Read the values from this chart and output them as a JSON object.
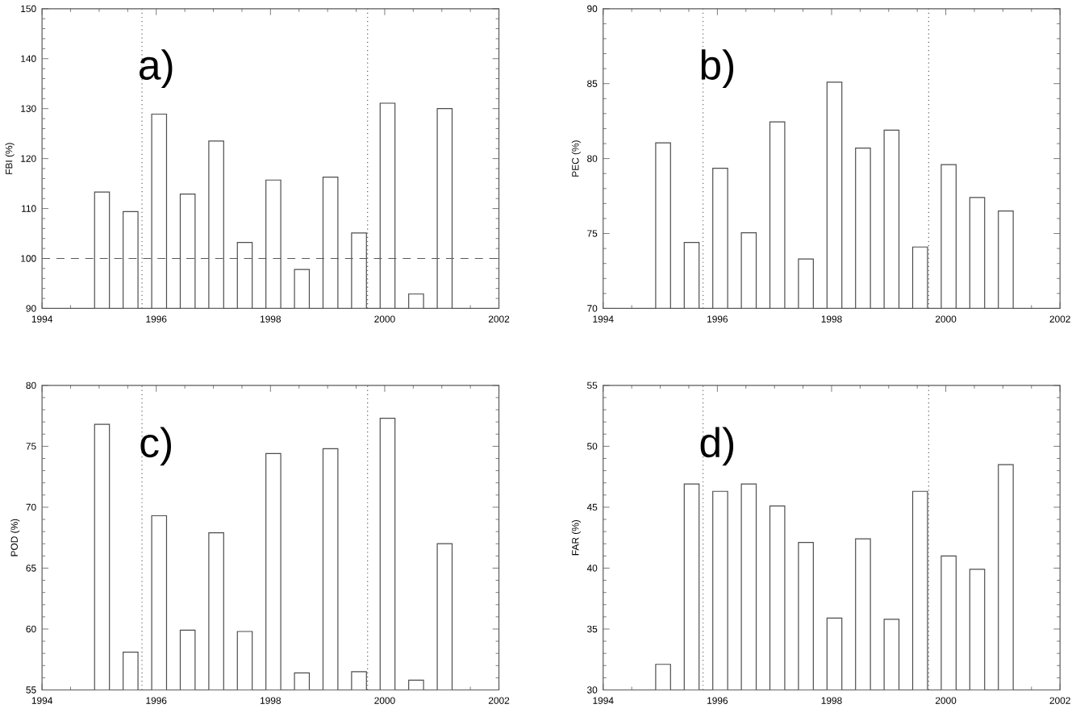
{
  "chart_data": [
    {
      "type": "bar",
      "ylabel": "FBI (%)",
      "annotations": [
        "a)"
      ],
      "x": [
        1995.05,
        1995.55,
        1996.05,
        1996.55,
        1997.05,
        1997.55,
        1998.05,
        1998.55,
        1999.05,
        1999.55,
        2000.05,
        2000.55,
        2001.05
      ],
      "values": [
        113.3,
        109.4,
        128.9,
        112.9,
        123.5,
        103.2,
        115.7,
        97.8,
        116.3,
        105.1,
        131.1,
        92.9,
        130.0
      ],
      "xlim": [
        1994,
        2002
      ],
      "xticks": [
        1994,
        1996,
        1998,
        2000,
        2002
      ],
      "ylim": [
        90,
        150
      ],
      "yticks": [
        90,
        100,
        110,
        120,
        130,
        140,
        150
      ],
      "ref_lines": [
        {
          "axis": "x",
          "value": 1995.75,
          "line_style": "dotted"
        },
        {
          "axis": "x",
          "value": 1999.7,
          "line_style": "dotted"
        },
        {
          "axis": "y",
          "value": 100,
          "line_style": "dashed"
        }
      ]
    },
    {
      "type": "bar",
      "ylabel": "PEC (%)",
      "annotations": [
        "b)"
      ],
      "x": [
        1995.05,
        1995.55,
        1996.05,
        1996.55,
        1997.05,
        1997.55,
        1998.05,
        1998.55,
        1999.05,
        1999.55,
        2000.05,
        2000.55,
        2001.05
      ],
      "values": [
        81.05,
        74.4,
        79.35,
        75.05,
        82.45,
        73.3,
        85.1,
        80.7,
        81.9,
        74.1,
        79.6,
        77.4,
        76.5
      ],
      "xlim": [
        1994,
        2002
      ],
      "xticks": [
        1994,
        1996,
        1998,
        2000,
        2002
      ],
      "ylim": [
        70,
        90
      ],
      "yticks": [
        70,
        75,
        80,
        85,
        90
      ],
      "ref_lines": [
        {
          "axis": "x",
          "value": 1995.75,
          "line_style": "dotted"
        },
        {
          "axis": "x",
          "value": 1999.7,
          "line_style": "dotted"
        }
      ]
    },
    {
      "type": "bar",
      "ylabel": "POD (%)",
      "annotations": [
        "c)"
      ],
      "x": [
        1995.05,
        1995.55,
        1996.05,
        1996.55,
        1997.05,
        1997.55,
        1998.05,
        1998.55,
        1999.05,
        1999.55,
        2000.05,
        2000.55,
        2001.05
      ],
      "values": [
        76.8,
        58.1,
        69.3,
        59.9,
        67.9,
        59.8,
        74.4,
        56.4,
        74.8,
        56.5,
        77.3,
        55.8,
        67.0
      ],
      "xlim": [
        1994,
        2002
      ],
      "xticks": [
        1994,
        1996,
        1998,
        2000,
        2002
      ],
      "ylim": [
        55,
        80
      ],
      "yticks": [
        55,
        60,
        65,
        70,
        75,
        80
      ],
      "ref_lines": [
        {
          "axis": "x",
          "value": 1995.75,
          "line_style": "dotted"
        },
        {
          "axis": "x",
          "value": 1999.7,
          "line_style": "dotted"
        }
      ]
    },
    {
      "type": "bar",
      "ylabel": "FAR (%)",
      "annotations": [
        "d)"
      ],
      "x": [
        1995.05,
        1995.55,
        1996.05,
        1996.55,
        1997.05,
        1997.55,
        1998.05,
        1998.55,
        1999.05,
        1999.55,
        2000.05,
        2000.55,
        2001.05
      ],
      "values": [
        32.1,
        46.9,
        46.3,
        46.9,
        45.1,
        42.1,
        35.9,
        42.4,
        35.8,
        46.3,
        41.0,
        39.9,
        48.5
      ],
      "xlim": [
        1994,
        2002
      ],
      "xticks": [
        1994,
        1996,
        1998,
        2000,
        2002
      ],
      "ylim": [
        30,
        55
      ],
      "yticks": [
        30,
        35,
        40,
        45,
        50,
        55
      ],
      "ref_lines": [
        {
          "axis": "x",
          "value": 1995.75,
          "line_style": "dotted"
        },
        {
          "axis": "x",
          "value": 1999.7,
          "line_style": "dotted"
        }
      ]
    }
  ]
}
